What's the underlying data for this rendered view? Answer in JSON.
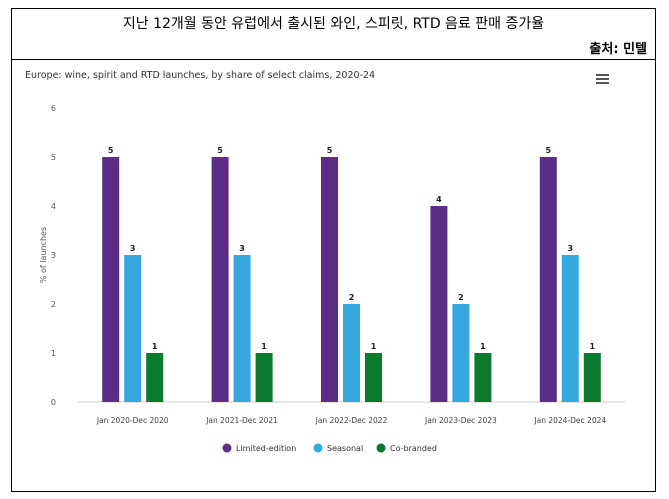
{
  "header": {
    "title": "지난 12개월 동안 유럽에서 출시된 와인, 스피릿, RTD 음료 판매 증가율",
    "source": "출처: 민텔"
  },
  "chart_data": {
    "type": "bar",
    "title": "Europe: wine, spirit and RTD launches, by share of select claims, 2020-24",
    "xlabel": "",
    "ylabel": "% of launches",
    "ylim": [
      0,
      6
    ],
    "yticks": [
      0,
      1,
      2,
      3,
      4,
      5,
      6
    ],
    "grid": false,
    "legend": "bottom",
    "categories": [
      "Jan 2020-Dec 2020",
      "Jan 2021-Dec 2021",
      "Jan 2022-Dec 2022",
      "Jan 2023-Dec 2023",
      "Jan 2024-Dec 2024"
    ],
    "series": [
      {
        "name": "Limited-edition",
        "color": "#5b2d87",
        "values": [
          5,
          5,
          5,
          4,
          5
        ]
      },
      {
        "name": "Seasonal",
        "color": "#35a8e0",
        "values": [
          3,
          3,
          2,
          2,
          3
        ]
      },
      {
        "name": "Co-branded",
        "color": "#0c7a2e",
        "values": [
          1,
          1,
          1,
          1,
          1
        ]
      }
    ]
  },
  "menu_icon": "hamburger-menu-icon"
}
